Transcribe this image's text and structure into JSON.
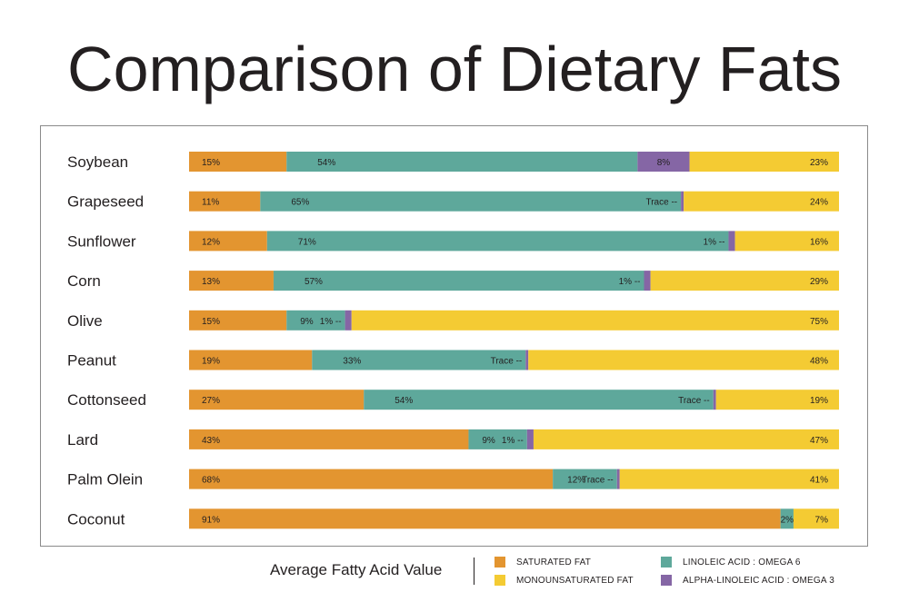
{
  "title": "Comparison of Dietary Fats",
  "colors": {
    "saturated": "#e39530",
    "linoleic": "#5ea89b",
    "alpha": "#8566a5",
    "mono": "#f4cb33"
  },
  "legend": {
    "title": "Average Fatty Acid Value",
    "items": [
      {
        "key": "saturated",
        "label": "SATURATED FAT"
      },
      {
        "key": "mono",
        "label": "MONOUNSATURATED FAT"
      },
      {
        "key": "linoleic",
        "label": "LINOLEIC ACID : OMEGA 6"
      },
      {
        "key": "alpha",
        "label": "ALPHA-LINOLEIC ACID : OMEGA 3"
      }
    ]
  },
  "chart_data": {
    "type": "bar",
    "orientation": "horizontal",
    "stacked": true,
    "title": "Comparison of Dietary Fats",
    "categories": [
      "Soybean",
      "Grapeseed",
      "Sunflower",
      "Corn",
      "Olive",
      "Peanut",
      "Cottonseed",
      "Lard",
      "Palm Olein",
      "Coconut"
    ],
    "series": [
      {
        "name": "SATURATED FAT",
        "key": "saturated",
        "values": [
          15,
          11,
          12,
          13,
          15,
          19,
          27,
          43,
          68,
          91
        ],
        "labels": [
          "15%",
          "11%",
          "12%",
          "13%",
          "15%",
          "19%",
          "27%",
          "43%",
          "68%",
          "91%"
        ]
      },
      {
        "name": "LINOLEIC ACID : OMEGA 6",
        "key": "linoleic",
        "values": [
          54,
          65,
          71,
          57,
          9,
          33,
          54,
          9,
          12,
          2
        ],
        "labels": [
          "54%",
          "65%",
          "71%",
          "57%",
          "9%",
          "33%",
          "54%",
          "9%",
          "12%",
          "2%"
        ]
      },
      {
        "name": "ALPHA-LINOLEIC ACID : OMEGA 3",
        "key": "alpha",
        "values": [
          8,
          0,
          1,
          1,
          1,
          0,
          0,
          1,
          0,
          0
        ],
        "labels": [
          "8%",
          "Trace --",
          "1% --",
          "1% --",
          "1% --",
          "Trace --",
          "Trace --",
          "1% --",
          "Trace --",
          ""
        ]
      },
      {
        "name": "MONOUNSATURATED FAT",
        "key": "mono",
        "values": [
          23,
          24,
          16,
          29,
          75,
          48,
          19,
          47,
          41,
          7
        ],
        "labels": [
          "23%",
          "24%",
          "16%",
          "29%",
          "75%",
          "48%",
          "19%",
          "47%",
          "41%",
          "7%"
        ]
      }
    ],
    "legend_position": "bottom",
    "grid": false
  }
}
